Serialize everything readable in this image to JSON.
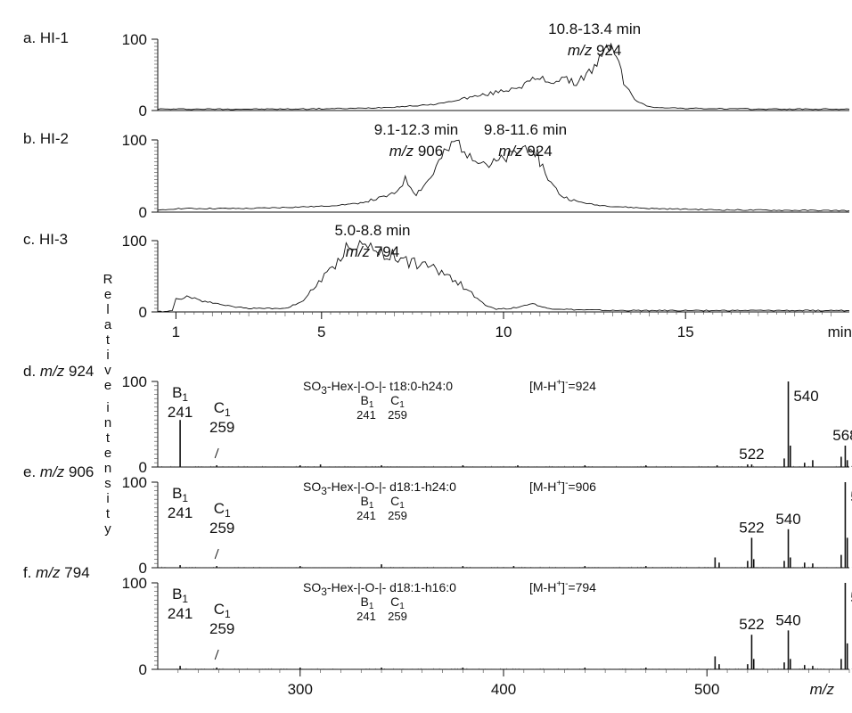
{
  "chromatograms": {
    "x_axis": {
      "ticks": [
        1,
        5,
        10,
        15
      ],
      "tick_labels": [
        "1",
        "5",
        "10",
        "15"
      ],
      "unit": "min",
      "range": [
        0.5,
        19.5
      ]
    },
    "y_ticks": [
      "100",
      "0"
    ]
  },
  "spectra": {
    "x_axis": {
      "ticks": [
        300,
        400,
        500
      ],
      "tick_labels": [
        "300",
        "400",
        "500"
      ],
      "unit": "m/z",
      "range": [
        230,
        570
      ]
    },
    "y_ticks": [
      "100",
      "0"
    ]
  },
  "y_axis_title": "Relative intensity",
  "chart_data": [
    {
      "type": "line",
      "panel": "a",
      "panel_label": "a. HI-1",
      "annotations": [
        {
          "line1": "10.8-13.4 min",
          "line2_italic": "m/z",
          "line2_value": "924",
          "x": 12.5
        }
      ],
      "x": [
        0.5,
        4,
        6,
        7,
        8,
        8.5,
        9,
        9.5,
        10,
        10.5,
        10.8,
        11,
        11.3,
        11.6,
        12,
        12.2,
        12.5,
        12.7,
        12.9,
        13.0,
        13.1,
        13.3,
        13.6,
        14,
        15,
        17,
        19.5
      ],
      "y": [
        2,
        2,
        3,
        5,
        8,
        12,
        18,
        22,
        28,
        35,
        42,
        45,
        40,
        45,
        38,
        48,
        60,
        75,
        90,
        92,
        80,
        40,
        15,
        5,
        3,
        2,
        2
      ],
      "ylim": [
        0,
        100
      ]
    },
    {
      "type": "line",
      "panel": "b",
      "panel_label": "b. HI-2",
      "annotations": [
        {
          "line1": "9.1-12.3 min",
          "line2_italic": "m/z",
          "line2_value": "906",
          "x": 7.6
        },
        {
          "line1": "9.8-11.6 min",
          "line2_italic": "m/z",
          "line2_value": "924",
          "x": 10.6
        }
      ],
      "x": [
        0.5,
        1,
        3,
        5,
        6,
        6.5,
        7,
        7.3,
        7.6,
        8.0,
        8.3,
        8.7,
        9.0,
        9.3,
        9.6,
        10.0,
        10.3,
        10.6,
        10.8,
        11.0,
        11.3,
        11.6,
        12,
        12.5,
        13,
        14,
        16,
        19.5
      ],
      "y": [
        2,
        5,
        5,
        8,
        12,
        18,
        25,
        45,
        25,
        48,
        75,
        98,
        85,
        75,
        65,
        72,
        80,
        90,
        95,
        70,
        40,
        22,
        15,
        10,
        8,
        5,
        3,
        2
      ],
      "ylim": [
        0,
        100
      ]
    },
    {
      "type": "line",
      "panel": "c",
      "panel_label": "c. HI-3",
      "annotations": [
        {
          "line1": "5.0-8.8 min",
          "line2_italic": "m/z",
          "line2_value": "794",
          "x": 6.4
        }
      ],
      "x": [
        0.5,
        0.9,
        1.0,
        1.3,
        1.8,
        2.5,
        3,
        3.5,
        4,
        4.5,
        4.7,
        5.0,
        5.3,
        5.6,
        5.9,
        6.2,
        6.5,
        6.8,
        7.1,
        7.4,
        7.7,
        8.0,
        8.3,
        8.6,
        8.9,
        9.2,
        9.5,
        9.8,
        10.2,
        10.5,
        10.8,
        11.0,
        11.2,
        11.6,
        12,
        13,
        15,
        19.5
      ],
      "y": [
        0,
        2,
        18,
        22,
        15,
        8,
        5,
        5,
        5,
        15,
        30,
        45,
        60,
        85,
        98,
        92,
        88,
        80,
        78,
        70,
        68,
        62,
        55,
        48,
        35,
        22,
        10,
        4,
        5,
        8,
        12,
        8,
        5,
        4,
        3,
        2,
        2,
        2
      ],
      "ylim": [
        0,
        100
      ]
    },
    {
      "type": "bar",
      "panel": "d",
      "panel_label_prefix": "d.",
      "panel_label_italic": "m/z",
      "panel_label_value": "924",
      "formula_lead": "SO",
      "formula_sub": "3",
      "formula_rest": "-Hex-|-O-|- t18:0-h24:0",
      "ion_prefix": "[M-H",
      "ion_sup": "+",
      "ion_suffix": "]",
      "ion_sup2": "-",
      "ion_value": "=924",
      "fragment_labels": {
        "b": "B",
        "b_sub": "1",
        "b_mz": "241",
        "c": "C",
        "c_sub": "1",
        "c_mz": "259"
      },
      "peak_labels": [
        {
          "mz": 241,
          "text": "241"
        },
        {
          "mz": 522,
          "text": "522"
        },
        {
          "mz": 540,
          "text": "540"
        },
        {
          "mz": 568,
          "text": "568"
        }
      ],
      "peaks_mz": [
        241,
        259,
        300,
        310,
        340,
        380,
        407,
        440,
        470,
        505,
        520,
        522,
        538,
        540,
        541,
        548,
        552,
        566,
        568,
        569,
        575
      ],
      "peaks_intensity": [
        55,
        2,
        2,
        3,
        2,
        2,
        2,
        2,
        2,
        2,
        3,
        3,
        10,
        100,
        25,
        5,
        8,
        12,
        25,
        8,
        4
      ],
      "ylim": [
        0,
        100
      ]
    },
    {
      "type": "bar",
      "panel": "e",
      "panel_label_prefix": "e.",
      "panel_label_italic": "m/z",
      "panel_label_value": "906",
      "formula_lead": "SO",
      "formula_sub": "3",
      "formula_rest": "-Hex-|-O-|- d18:1-h24:0",
      "ion_prefix": "[M-H",
      "ion_sup": "+",
      "ion_suffix": "]",
      "ion_sup2": "-",
      "ion_value": "=906",
      "fragment_labels": {
        "b": "B",
        "b_sub": "1",
        "b_mz": "241",
        "c": "C",
        "c_sub": "1",
        "c_mz": "259"
      },
      "peak_labels": [
        {
          "mz": 241,
          "text": "241"
        },
        {
          "mz": 522,
          "text": "522"
        },
        {
          "mz": 540,
          "text": "540"
        },
        {
          "mz": 568,
          "text": "568"
        }
      ],
      "peaks_mz": [
        241,
        259,
        300,
        340,
        380,
        405,
        440,
        470,
        504,
        506,
        520,
        522,
        523,
        538,
        540,
        541,
        548,
        552,
        566,
        568,
        569,
        575
      ],
      "peaks_intensity": [
        3,
        2,
        2,
        4,
        2,
        2,
        2,
        2,
        12,
        6,
        8,
        35,
        10,
        8,
        45,
        12,
        6,
        5,
        15,
        100,
        35,
        5
      ],
      "ylim": [
        0,
        100
      ]
    },
    {
      "type": "bar",
      "panel": "f",
      "panel_label_prefix": "f.",
      "panel_label_italic": "m/z",
      "panel_label_value": "794",
      "formula_lead": "SO",
      "formula_sub": "3",
      "formula_rest": "-Hex-|-O-|- d18:1-h16:0",
      "ion_prefix": "[M-H",
      "ion_sup": "+",
      "ion_suffix": "]",
      "ion_sup2": "-",
      "ion_value": "=794",
      "fragment_labels": {
        "b": "B",
        "b_sub": "1",
        "b_mz": "241",
        "c": "C",
        "c_sub": "1",
        "c_mz": "259"
      },
      "peak_labels": [
        {
          "mz": 241,
          "text": "241"
        },
        {
          "mz": 522,
          "text": "522"
        },
        {
          "mz": 540,
          "text": "540"
        },
        {
          "mz": 568,
          "text": "568"
        }
      ],
      "peaks_mz": [
        241,
        259,
        300,
        340,
        380,
        440,
        470,
        504,
        506,
        520,
        522,
        523,
        538,
        540,
        541,
        548,
        552,
        566,
        568,
        569,
        575,
        600
      ],
      "peaks_intensity": [
        4,
        2,
        2,
        2,
        2,
        2,
        2,
        15,
        6,
        6,
        40,
        12,
        8,
        45,
        12,
        5,
        4,
        12,
        100,
        30,
        4,
        6
      ],
      "ylim": [
        0,
        100
      ]
    }
  ]
}
